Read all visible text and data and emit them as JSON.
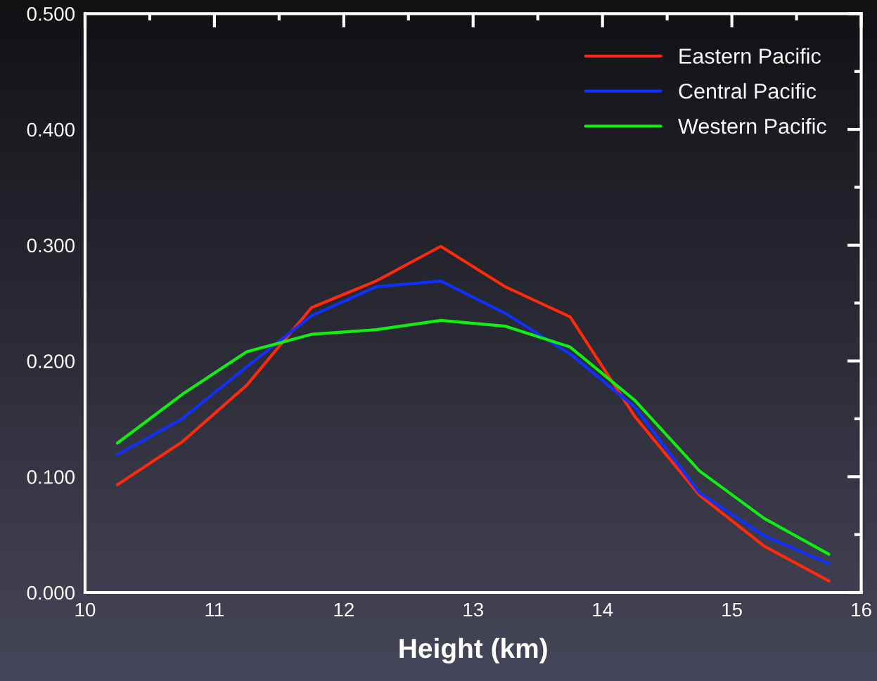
{
  "chart_data": {
    "type": "line",
    "xlabel": "Height (km)",
    "x": [
      10.25,
      10.75,
      11.25,
      11.75,
      12.25,
      12.75,
      13.25,
      13.75,
      14.25,
      14.75,
      15.25,
      15.75
    ],
    "series": [
      {
        "name": "Eastern Pacific",
        "color": "#ff2a0a",
        "values": [
          0.093,
          0.13,
          0.179,
          0.246,
          0.269,
          0.299,
          0.264,
          0.238,
          0.152,
          0.084,
          0.04,
          0.01
        ]
      },
      {
        "name": "Central Pacific",
        "color": "#1030ff",
        "values": [
          0.119,
          0.15,
          0.195,
          0.239,
          0.264,
          0.269,
          0.241,
          0.206,
          0.16,
          0.086,
          0.049,
          0.025
        ]
      },
      {
        "name": "Western Pacific",
        "color": "#10f010",
        "values": [
          0.129,
          0.171,
          0.208,
          0.223,
          0.227,
          0.235,
          0.23,
          0.212,
          0.166,
          0.105,
          0.064,
          0.033
        ]
      }
    ],
    "xlim": [
      10,
      16
    ],
    "xticks": [
      10,
      {
        "value": 10.5,
        "label": null
      },
      11,
      {
        "value": 11.5,
        "label": null
      },
      12,
      {
        "value": 12.5,
        "label": null
      },
      13,
      {
        "value": 13.5,
        "label": null
      },
      14,
      {
        "value": 14.5,
        "label": null
      },
      15,
      {
        "value": 15.5,
        "label": null
      },
      16
    ],
    "ylim": [
      0,
      0.5
    ],
    "yticks": [
      {
        "value": 0,
        "label": "0.000"
      },
      {
        "value": 0.05,
        "label": null
      },
      {
        "value": 0.1,
        "label": "0.100"
      },
      {
        "value": 0.15,
        "label": null
      },
      {
        "value": 0.2,
        "label": "0.200"
      },
      {
        "value": 0.25,
        "label": null
      },
      {
        "value": 0.3,
        "label": "0.300"
      },
      {
        "value": 0.35,
        "label": null
      },
      {
        "value": 0.4,
        "label": "0.400"
      },
      {
        "value": 0.45,
        "label": null
      },
      {
        "value": 0.5,
        "label": "0.500"
      }
    ],
    "legend": "top right",
    "grid": false,
    "line_style": "solid"
  }
}
